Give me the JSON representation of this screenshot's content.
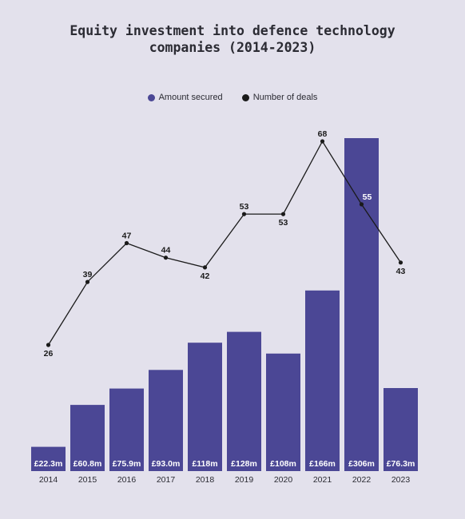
{
  "chart_data": {
    "type": "bar",
    "title": "Equity investment into defence technology\ncompanies (2014-2023)",
    "categories": [
      "2014",
      "2015",
      "2016",
      "2017",
      "2018",
      "2019",
      "2020",
      "2021",
      "2022",
      "2023"
    ],
    "series": [
      {
        "name": "Amount secured",
        "type": "bar",
        "values": [
          22.3,
          60.8,
          75.9,
          93.0,
          118,
          128,
          108,
          166,
          306,
          76.3
        ],
        "labels": [
          "£22.3m",
          "£60.8m",
          "£75.9m",
          "£93.0m",
          "£118m",
          "£128m",
          "£108m",
          "£166m",
          "£306m",
          "£76.3m"
        ],
        "color": "#4b4795"
      },
      {
        "name": "Number of deals",
        "type": "line",
        "values": [
          26,
          39,
          47,
          44,
          42,
          53,
          53,
          68,
          55,
          43
        ],
        "color": "#1a1a1a"
      }
    ],
    "legend": {
      "position": "top-center"
    },
    "grid": false
  }
}
